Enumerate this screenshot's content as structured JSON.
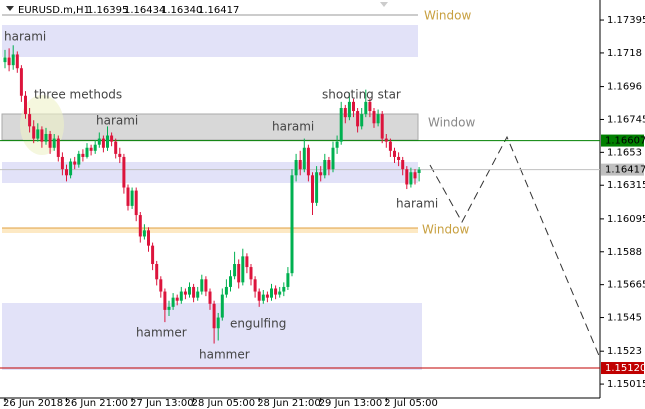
{
  "chart_data": {
    "type": "candlestick",
    "header": {
      "symbol": "EURUSD.m,H1",
      "open": "1.16395",
      "high": "1.16434",
      "low": "1.16340",
      "close": "1.16417"
    },
    "up_color": "#00b050",
    "down_color": "#dc143c",
    "ylim": [
      1.17526,
      1.14924
    ],
    "yticks": [
      1.17395,
      1.1718,
      1.1696,
      1.16745,
      1.1653,
      1.16315,
      1.16095,
      1.1588,
      1.15665,
      1.1545,
      1.1523,
      {
        "value": 1.15015,
        "label": "1.15015"
      }
    ],
    "price_lines": [
      {
        "value": 1.16607,
        "color": "#008000",
        "text_color": "#000000"
      },
      {
        "value": 1.16417,
        "color": "#c0c0c0",
        "text_color": "#000000"
      },
      {
        "value": 1.1512,
        "color": "#c00000",
        "text_color": "#ffffff",
        "label": "1.15120"
      }
    ],
    "annotations": [
      "harami",
      "three methods",
      "harami",
      "harami",
      "shooting star",
      "harami",
      "hammer",
      "engulfing",
      "hammer",
      "Window",
      "Window",
      "Window"
    ],
    "categories": [
      "26 Jun 2018",
      null,
      null,
      null,
      null,
      null,
      null,
      null,
      null,
      null,
      null,
      null,
      null,
      null,
      null,
      "26 Jun 21:00",
      null,
      null,
      null,
      null,
      null,
      null,
      null,
      null,
      null,
      null,
      null,
      null,
      null,
      null,
      null,
      "27 Jun 13:00",
      null,
      null,
      null,
      null,
      null,
      null,
      null,
      null,
      null,
      null,
      null,
      null,
      null,
      null,
      "28 Jun 05:00",
      null,
      null,
      null,
      null,
      null,
      null,
      null,
      null,
      null,
      null,
      null,
      null,
      null,
      null,
      null,
      "28 Jun 21:00",
      null,
      null,
      null,
      null,
      null,
      null,
      null,
      null,
      null,
      null,
      null,
      null,
      null,
      null,
      "29 Jun 13:00",
      null,
      null,
      null,
      null,
      null,
      null,
      null,
      null,
      null,
      null,
      null,
      null,
      null,
      null,
      null,
      "2 Jul 05:00",
      null,
      null,
      null,
      null,
      null,
      null,
      null,
      null
    ],
    "ohlc": [
      [
        1.1712,
        1.172,
        1.1708,
        1.1715
      ],
      [
        1.1715,
        1.1721,
        1.1706,
        1.171
      ],
      [
        1.171,
        1.1723,
        1.1707,
        1.1717
      ],
      [
        1.1717,
        1.1719,
        1.1705,
        1.1708
      ],
      [
        1.1708,
        1.171,
        1.1686,
        1.169
      ],
      [
        1.169,
        1.1693,
        1.1675,
        1.1678
      ],
      [
        1.1678,
        1.1682,
        1.1666,
        1.167
      ],
      [
        1.167,
        1.1674,
        1.1659,
        1.1662
      ],
      [
        1.1662,
        1.1672,
        1.166,
        1.1668
      ],
      [
        1.1668,
        1.167,
        1.1656,
        1.166
      ],
      [
        1.166,
        1.1669,
        1.1658,
        1.1665
      ],
      [
        1.1665,
        1.1667,
        1.1652,
        1.1656
      ],
      [
        1.1656,
        1.1665,
        1.1654,
        1.1662
      ],
      [
        1.1662,
        1.1664,
        1.1647,
        1.165
      ],
      [
        1.165,
        1.1653,
        1.1638,
        1.1642
      ],
      [
        1.1642,
        1.1645,
        1.1634,
        1.1638
      ],
      [
        1.1638,
        1.1649,
        1.1636,
        1.1647
      ],
      [
        1.1647,
        1.165,
        1.1642,
        1.1645
      ],
      [
        1.1645,
        1.1654,
        1.1643,
        1.1652
      ],
      [
        1.1652,
        1.1655,
        1.1647,
        1.165
      ],
      [
        1.165,
        1.1659,
        1.1649,
        1.1656
      ],
      [
        1.1656,
        1.1658,
        1.1651,
        1.1654
      ],
      [
        1.1654,
        1.1661,
        1.1652,
        1.1658
      ],
      [
        1.1658,
        1.1666,
        1.1656,
        1.1662
      ],
      [
        1.1662,
        1.1664,
        1.1653,
        1.1656
      ],
      [
        1.1656,
        1.167,
        1.1654,
        1.1664
      ],
      [
        1.1664,
        1.1666,
        1.1657,
        1.166
      ],
      [
        1.166,
        1.1662,
        1.1649,
        1.1652
      ],
      [
        1.1652,
        1.1656,
        1.1646,
        1.165
      ],
      [
        1.165,
        1.1652,
        1.1626,
        1.163
      ],
      [
        1.163,
        1.1632,
        1.1615,
        1.1618
      ],
      [
        1.1618,
        1.163,
        1.1616,
        1.1628
      ],
      [
        1.1628,
        1.163,
        1.1608,
        1.1612
      ],
      [
        1.1612,
        1.1614,
        1.1594,
        1.1598
      ],
      [
        1.1598,
        1.1606,
        1.1596,
        1.1602
      ],
      [
        1.1602,
        1.1604,
        1.1588,
        1.1592
      ],
      [
        1.1592,
        1.1594,
        1.1576,
        1.158
      ],
      [
        1.158,
        1.1582,
        1.1566,
        1.157
      ],
      [
        1.157,
        1.1572,
        1.1558,
        1.1562
      ],
      [
        1.1562,
        1.1564,
        1.1542,
        1.155
      ],
      [
        1.155,
        1.1556,
        1.1546,
        1.1552
      ],
      [
        1.1552,
        1.1561,
        1.155,
        1.1558
      ],
      [
        1.1558,
        1.156,
        1.1553,
        1.1556
      ],
      [
        1.1556,
        1.1565,
        1.1554,
        1.1562
      ],
      [
        1.1562,
        1.1564,
        1.1557,
        1.156
      ],
      [
        1.156,
        1.1568,
        1.1558,
        1.1565
      ],
      [
        1.1565,
        1.1567,
        1.1555,
        1.1558
      ],
      [
        1.1558,
        1.1565,
        1.1556,
        1.1562
      ],
      [
        1.1562,
        1.1573,
        1.156,
        1.157
      ],
      [
        1.157,
        1.1572,
        1.1559,
        1.1562
      ],
      [
        1.1562,
        1.1564,
        1.155,
        1.1554
      ],
      [
        1.1554,
        1.1556,
        1.1528,
        1.1538
      ],
      [
        1.1538,
        1.1548,
        1.153,
        1.1545
      ],
      [
        1.1545,
        1.1564,
        1.1543,
        1.156
      ],
      [
        1.156,
        1.157,
        1.1558,
        1.1565
      ],
      [
        1.1565,
        1.1576,
        1.1562,
        1.1572
      ],
      [
        1.1572,
        1.1588,
        1.157,
        1.158
      ],
      [
        1.158,
        1.1583,
        1.1564,
        1.1568
      ],
      [
        1.1568,
        1.159,
        1.1566,
        1.1585
      ],
      [
        1.1585,
        1.1587,
        1.1574,
        1.1578
      ],
      [
        1.1578,
        1.158,
        1.1566,
        1.157
      ],
      [
        1.157,
        1.1572,
        1.1558,
        1.1562
      ],
      [
        1.1562,
        1.1564,
        1.1552,
        1.1556
      ],
      [
        1.1556,
        1.1563,
        1.1554,
        1.156
      ],
      [
        1.156,
        1.1562,
        1.1555,
        1.1558
      ],
      [
        1.1558,
        1.1567,
        1.1556,
        1.1564
      ],
      [
        1.1564,
        1.1566,
        1.1557,
        1.156
      ],
      [
        1.156,
        1.1565,
        1.1558,
        1.1562
      ],
      [
        1.1562,
        1.1568,
        1.1559,
        1.1565
      ],
      [
        1.1565,
        1.1578,
        1.1563,
        1.1574
      ],
      [
        1.1574,
        1.1642,
        1.1572,
        1.1638
      ],
      [
        1.1638,
        1.1652,
        1.1634,
        1.1648
      ],
      [
        1.1648,
        1.1654,
        1.1638,
        1.1642
      ],
      [
        1.1642,
        1.1662,
        1.164,
        1.1656
      ],
      [
        1.1656,
        1.1658,
        1.1634,
        1.1638
      ],
      [
        1.1638,
        1.164,
        1.1612,
        1.162
      ],
      [
        1.162,
        1.1644,
        1.1618,
        1.164
      ],
      [
        1.164,
        1.1644,
        1.1634,
        1.1638
      ],
      [
        1.1638,
        1.1652,
        1.1636,
        1.1648
      ],
      [
        1.1648,
        1.165,
        1.1638,
        1.1642
      ],
      [
        1.1642,
        1.166,
        1.164,
        1.1656
      ],
      [
        1.1656,
        1.1664,
        1.1652,
        1.166
      ],
      [
        1.166,
        1.1686,
        1.1658,
        1.1682
      ],
      [
        1.1682,
        1.1684,
        1.1672,
        1.1676
      ],
      [
        1.1676,
        1.1692,
        1.1674,
        1.1686
      ],
      [
        1.1686,
        1.1688,
        1.1676,
        1.168
      ],
      [
        1.168,
        1.1682,
        1.1666,
        1.167
      ],
      [
        1.167,
        1.1682,
        1.1668,
        1.1678
      ],
      [
        1.1678,
        1.1694,
        1.1676,
        1.1686
      ],
      [
        1.1686,
        1.1688,
        1.1676,
        1.168
      ],
      [
        1.168,
        1.1682,
        1.1669,
        1.1672
      ],
      [
        1.1672,
        1.1681,
        1.167,
        1.1678
      ],
      [
        1.1678,
        1.168,
        1.1659,
        1.1662
      ],
      [
        1.1662,
        1.1665,
        1.1656,
        1.166
      ],
      [
        1.166,
        1.1662,
        1.165,
        1.1654
      ],
      [
        1.1654,
        1.1656,
        1.1646,
        1.165
      ],
      [
        1.165,
        1.1653,
        1.1644,
        1.1648
      ],
      [
        1.1648,
        1.165,
        1.1638,
        1.1642
      ],
      [
        1.1642,
        1.1644,
        1.1629,
        1.1632
      ],
      [
        1.1632,
        1.1643,
        1.163,
        1.164
      ],
      [
        1.164,
        1.1642,
        1.1632,
        1.1636
      ],
      [
        1.16395,
        1.16434,
        1.1634,
        1.16417
      ]
    ]
  }
}
